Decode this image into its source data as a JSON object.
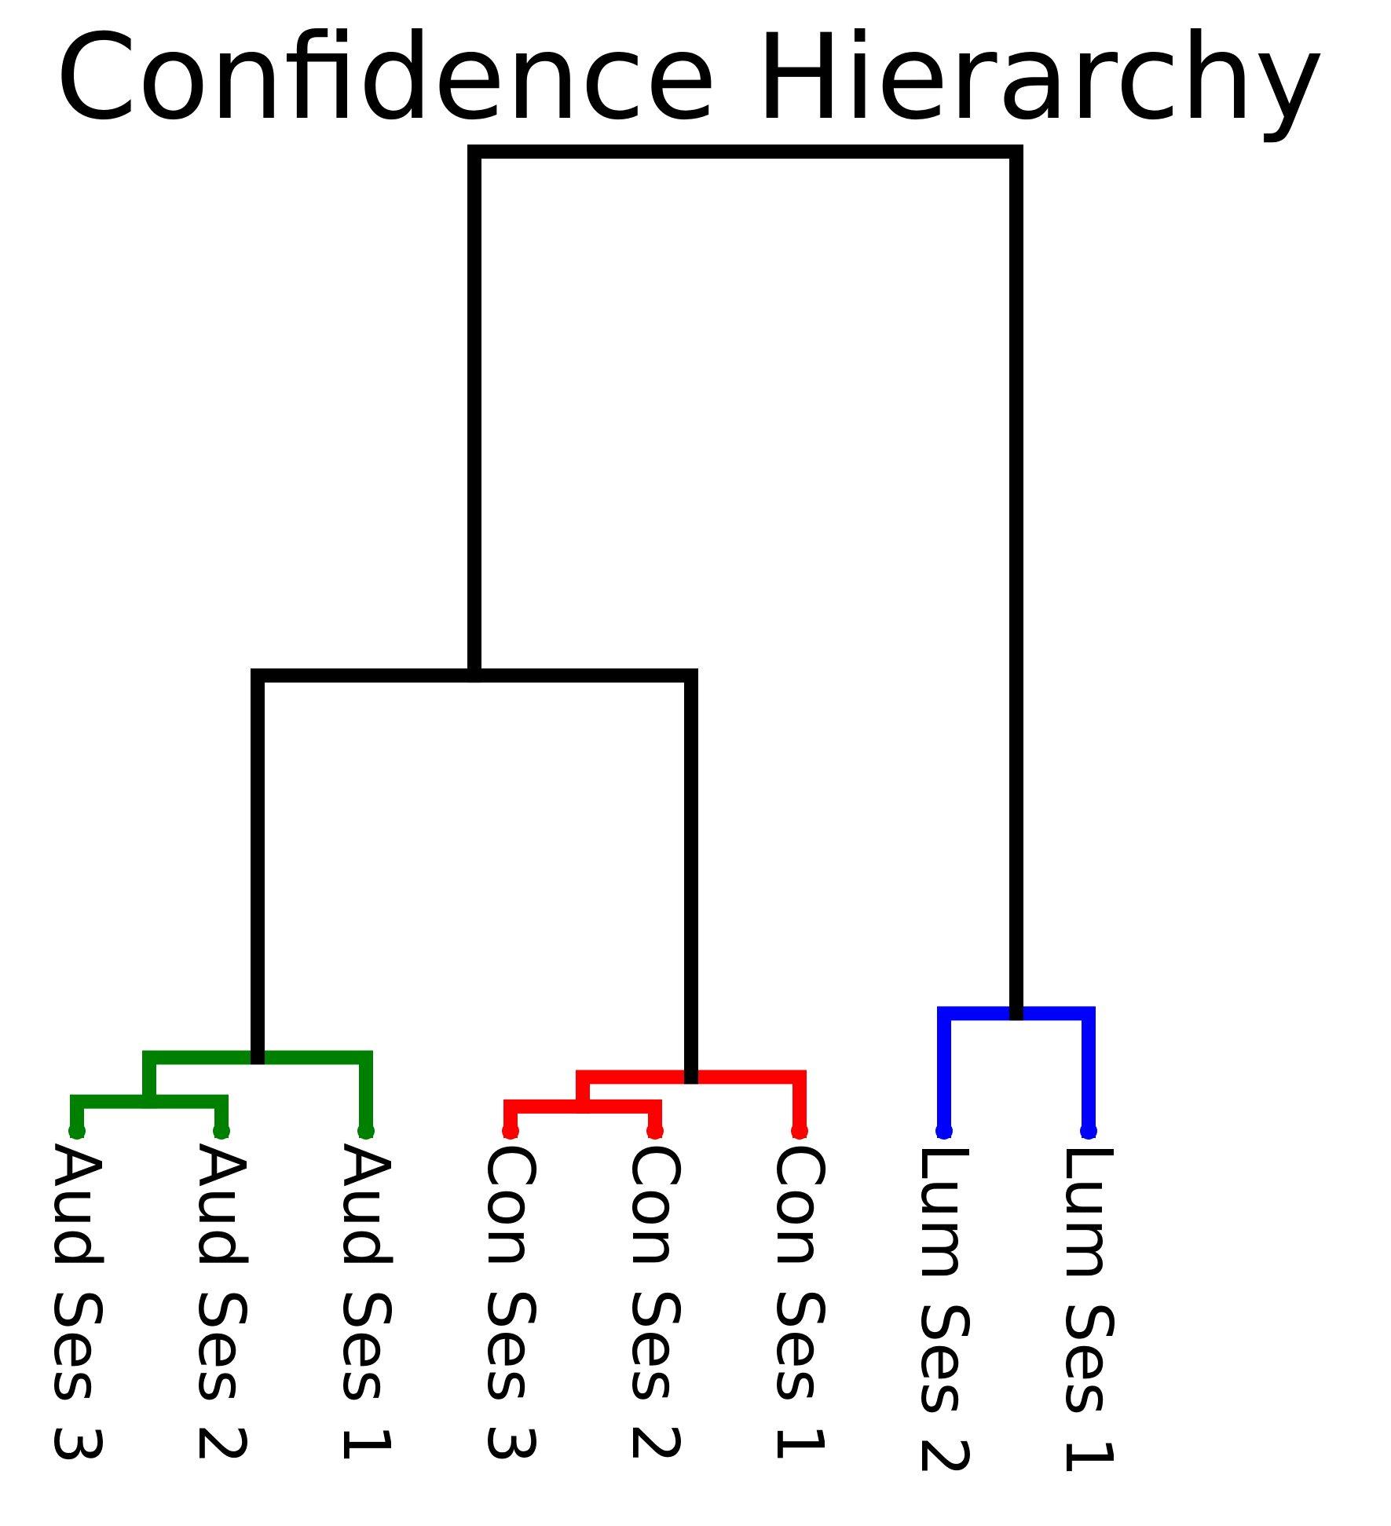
{
  "title": "Confidence Hierarchy",
  "leaves": [
    {
      "id": "aud3",
      "label": "Aud Ses 3",
      "color": "#008000"
    },
    {
      "id": "aud2",
      "label": "Aud Ses 2",
      "color": "#008000"
    },
    {
      "id": "aud1",
      "label": "Aud Ses 1",
      "color": "#008000"
    },
    {
      "id": "con3",
      "label": "Con Ses 3",
      "color": "#ff0000"
    },
    {
      "id": "con2",
      "label": "Con Ses 2",
      "color": "#ff0000"
    },
    {
      "id": "con1",
      "label": "Con Ses 1",
      "color": "#ff0000"
    },
    {
      "id": "lum2",
      "label": "Lum Ses 2",
      "color": "#0000ff"
    },
    {
      "id": "lum1",
      "label": "Lum Ses 1",
      "color": "#0000ff"
    }
  ],
  "merges": [
    {
      "id": "m_aud32",
      "left": "aud3",
      "right": "aud2",
      "height": 0.3,
      "color": "#008000"
    },
    {
      "id": "m_aud",
      "left": "m_aud32",
      "right": "aud1",
      "height": 0.75,
      "color": "#008000"
    },
    {
      "id": "m_con32",
      "left": "con3",
      "right": "con2",
      "height": 0.25,
      "color": "#ff0000"
    },
    {
      "id": "m_con",
      "left": "m_con32",
      "right": "con1",
      "height": 0.55,
      "color": "#ff0000"
    },
    {
      "id": "m_lum",
      "left": "lum2",
      "right": "lum1",
      "height": 1.2,
      "color": "#0000ff"
    },
    {
      "id": "m_audcon",
      "left": "m_aud",
      "right": "m_con",
      "height": 4.65,
      "color": "#000000"
    },
    {
      "id": "m_root",
      "left": "m_audcon",
      "right": "m_lum",
      "height": 10.0,
      "color": "#000000"
    }
  ],
  "link_color_above_threshold": "#000000"
}
